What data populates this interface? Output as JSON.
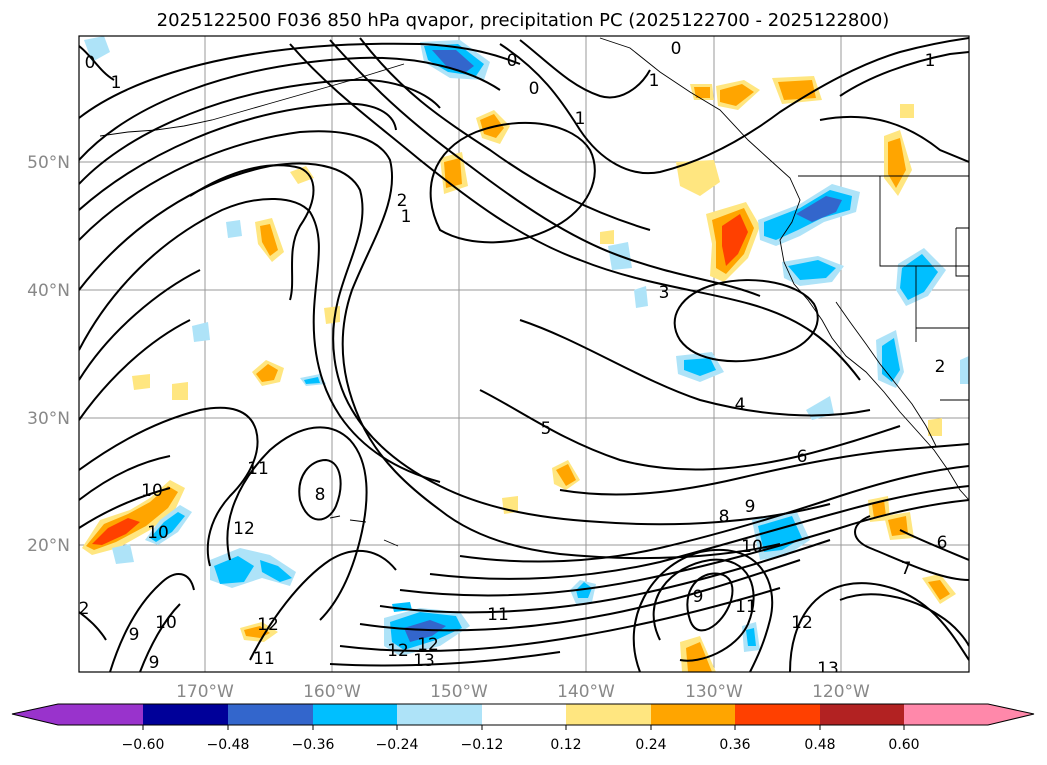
{
  "title": "2025122500 F036 850 hPa qvapor, precipitation PC (2025122700 - 2025122800)",
  "map": {
    "lat_labels": [
      "50°N",
      "40°N",
      "30°N",
      "20°N"
    ],
    "lon_labels": [
      "170°W",
      "160°W",
      "150°W",
      "140°W",
      "130°W",
      "120°W"
    ],
    "grid": true
  },
  "colorbar": {
    "ticks": [
      "−0.60",
      "−0.48",
      "−0.36",
      "−0.24",
      "−0.12",
      "0.12",
      "0.24",
      "0.36",
      "0.48",
      "0.60"
    ],
    "colors": {
      "lt_neg060": "#9933cc",
      "neg060_neg048": "#000099",
      "neg048_neg036": "#3366cc",
      "neg036_neg024": "#00bfff",
      "neg024_neg012": "#aee3f8",
      "neg012_012": "#ffffff",
      "p012_p024": "#ffe680",
      "p024_p036": "#ffa500",
      "p036_p048": "#ff4000",
      "p048_p060": "#b22222",
      "gt_p060": "#ff88aa"
    }
  },
  "contour_labels": [
    "0",
    "0",
    "0",
    "0",
    "1",
    "1",
    "1",
    "1",
    "2",
    "1",
    "2",
    "3",
    "4",
    "5",
    "6",
    "7",
    "6",
    "8",
    "8",
    "9",
    "9",
    "9",
    "9",
    "10",
    "10",
    "10",
    "10",
    "11",
    "11",
    "11",
    "11",
    "12",
    "12",
    "12",
    "12",
    "13",
    "13",
    "12",
    "2"
  ]
}
